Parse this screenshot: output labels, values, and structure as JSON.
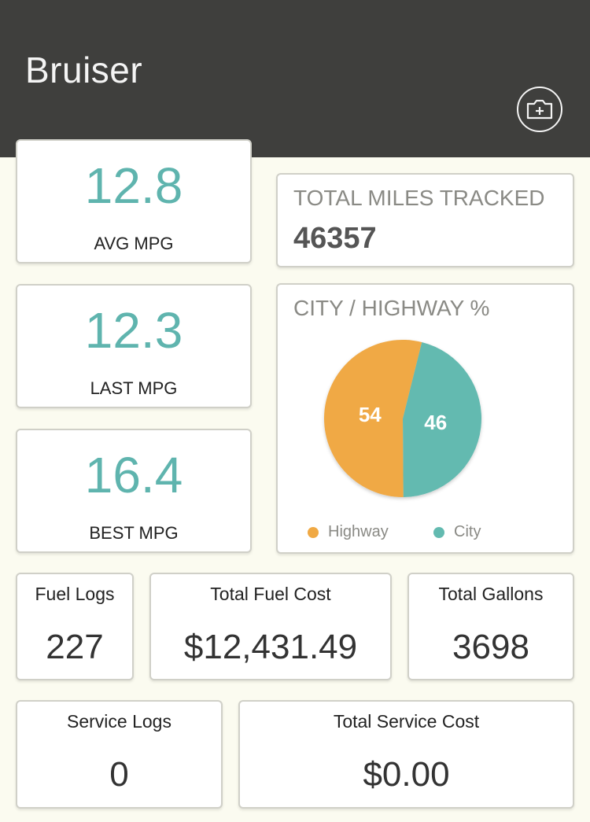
{
  "header": {
    "title": "Bruiser"
  },
  "stats": {
    "avg_mpg": {
      "value": "12.8",
      "label": "AVG MPG"
    },
    "last_mpg": {
      "value": "12.3",
      "label": "LAST MPG"
    },
    "best_mpg": {
      "value": "16.4",
      "label": "BEST MPG"
    }
  },
  "miles": {
    "title": "TOTAL MILES TRACKED",
    "value": "46357"
  },
  "city_highway": {
    "title": "CITY / HIGHWAY %",
    "legend": {
      "highway": "Highway",
      "city": "City"
    }
  },
  "chart_data": {
    "type": "pie",
    "title": "CITY / HIGHWAY %",
    "labels": [
      "Highway",
      "City"
    ],
    "values": [
      54,
      46
    ],
    "colors": [
      "#f0a944",
      "#63bab0"
    ],
    "legend": "bottom"
  },
  "fuel": {
    "logs": {
      "label": "Fuel Logs",
      "value": "227"
    },
    "cost": {
      "label": "Total Fuel Cost",
      "value": "$12,431.49"
    },
    "gallons": {
      "label": "Total Gallons",
      "value": "3698"
    }
  },
  "service": {
    "logs": {
      "label": "Service Logs",
      "value": "0"
    },
    "cost": {
      "label": "Total Service Cost",
      "value": "$0.00"
    }
  },
  "colors": {
    "accent": "#5fb4ae",
    "header": "#3f3f3d",
    "highway": "#f0a944",
    "city": "#63bab0"
  }
}
